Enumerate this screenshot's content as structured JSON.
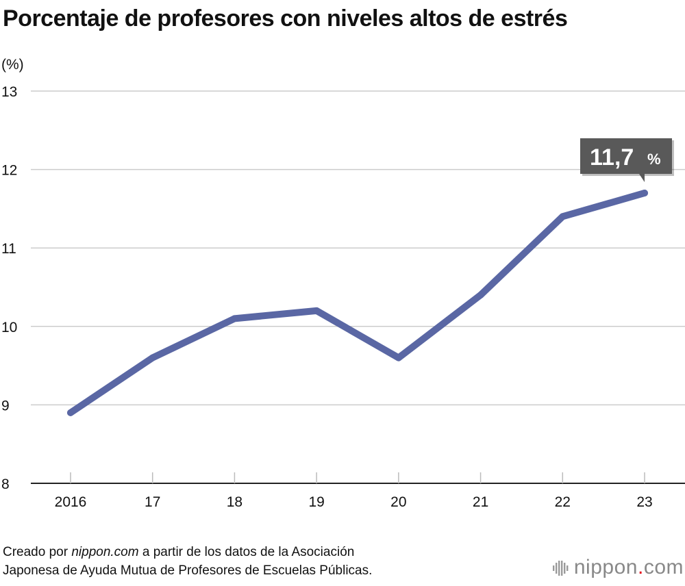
{
  "title": "Porcentaje de profesores con niveles altos de estrés",
  "source": {
    "prefix": "Creado por ",
    "site": "nippon.com",
    "line1_rest": " a partir de los datos de la Asociación",
    "line2": "Japonesa de Ayuda Mutua de Profesores de Escuelas Públicas."
  },
  "brand": {
    "name": "nippon",
    "dot": ".",
    "tld": "com"
  },
  "colors": {
    "line": "#5a67a4",
    "grid": "#cccccc",
    "callout": "#595959"
  },
  "chart_data": {
    "type": "line",
    "ylabel": "(%)",
    "ylim": [
      8,
      13
    ],
    "yticks": [
      "8",
      "9",
      "10",
      "11",
      "12",
      "13"
    ],
    "categories": [
      "2016",
      "17",
      "18",
      "19",
      "20",
      "21",
      "22",
      "23"
    ],
    "series": [
      {
        "values": [
          8.9,
          9.6,
          10.1,
          10.2,
          9.6,
          10.4,
          11.4,
          11.7
        ]
      }
    ],
    "annotation": {
      "value": "11,7",
      "unit": "%"
    }
  }
}
